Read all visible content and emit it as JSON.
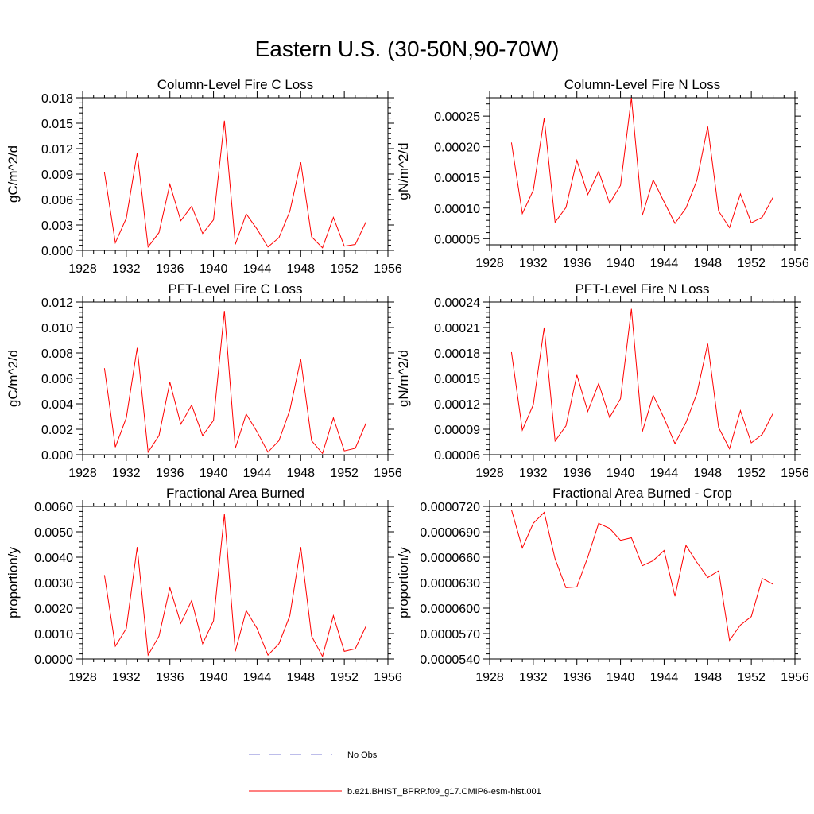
{
  "figure": {
    "title": "Eastern U.S. (30-50N,90-70W)"
  },
  "legend": {
    "entries": [
      {
        "label": "No Obs",
        "color": "#7b7bd6",
        "style": "dashed"
      },
      {
        "label": "b.e21.BHIST_BPRP.f09_g17.CMIP6-esm-hist.001",
        "color": "#ff0000",
        "style": "solid"
      }
    ]
  },
  "chart_data": [
    {
      "type": "line",
      "title": "Column-Level Fire C Loss",
      "ylabel": "gC/m^2/d",
      "xlim": [
        1928,
        1956
      ],
      "ylim": [
        0,
        0.018
      ],
      "xticks": [
        1928,
        1932,
        1936,
        1940,
        1944,
        1948,
        1952,
        1956
      ],
      "xtick_labels": [
        "1928",
        "1932",
        "1936",
        "1940",
        "1944",
        "1948",
        "1952",
        "1956"
      ],
      "yticks": [
        0,
        0.003,
        0.006,
        0.009,
        0.012,
        0.015,
        0.018
      ],
      "ytick_labels": [
        "0.000",
        "0.003",
        "0.006",
        "0.009",
        "0.012",
        "0.015",
        "0.018"
      ],
      "x": [
        1930,
        1931,
        1932,
        1933,
        1934,
        1935,
        1936,
        1937,
        1938,
        1939,
        1940,
        1941,
        1942,
        1943,
        1944,
        1945,
        1946,
        1947,
        1948,
        1949,
        1950,
        1951,
        1952,
        1953,
        1954
      ],
      "series": [
        {
          "color": "#ff0000",
          "values": [
            0.0092,
            0.0009,
            0.0038,
            0.0115,
            0.0004,
            0.0021,
            0.0078,
            0.0035,
            0.0052,
            0.002,
            0.0036,
            0.0153,
            0.0007,
            0.0043,
            0.0025,
            0.0004,
            0.0015,
            0.0046,
            0.0104,
            0.0016,
            0.0003,
            0.0039,
            0.0005,
            0.0007,
            0.0034
          ]
        }
      ]
    },
    {
      "type": "line",
      "title": "Column-Level Fire N Loss",
      "ylabel": "gN/m^2/d",
      "xlim": [
        1928,
        1956
      ],
      "ylim": [
        4e-05,
        0.00028
      ],
      "xticks": [
        1928,
        1932,
        1936,
        1940,
        1944,
        1948,
        1952,
        1956
      ],
      "xtick_labels": [
        "1928",
        "1932",
        "1936",
        "1940",
        "1944",
        "1948",
        "1952",
        "1956"
      ],
      "yticks": [
        5e-05,
        0.0001,
        0.00015,
        0.0002,
        0.00025
      ],
      "ytick_labels": [
        "0.00005",
        "0.00010",
        "0.00015",
        "0.00020",
        "0.00025"
      ],
      "x": [
        1930,
        1931,
        1932,
        1933,
        1934,
        1935,
        1936,
        1937,
        1938,
        1939,
        1940,
        1941,
        1942,
        1943,
        1944,
        1945,
        1946,
        1947,
        1948,
        1949,
        1950,
        1951,
        1952,
        1953,
        1954
      ],
      "series": [
        {
          "color": "#ff0000",
          "values": [
            0.000207,
            9.1e-05,
            0.000129,
            0.000247,
            7.7e-05,
            0.000101,
            0.000178,
            0.000122,
            0.00016,
            0.000108,
            0.000137,
            0.00028,
            8.8e-05,
            0.000146,
            0.00011,
            7.5e-05,
            0.0001,
            0.000145,
            0.000233,
            9.5e-05,
            6.8e-05,
            0.000123,
            7.6e-05,
            8.5e-05,
            0.000118
          ]
        }
      ]
    },
    {
      "type": "line",
      "title": "PFT-Level Fire C Loss",
      "ylabel": "gC/m^2/d",
      "xlim": [
        1928,
        1956
      ],
      "ylim": [
        0,
        0.012
      ],
      "xticks": [
        1928,
        1932,
        1936,
        1940,
        1944,
        1948,
        1952,
        1956
      ],
      "xtick_labels": [
        "1928",
        "1932",
        "1936",
        "1940",
        "1944",
        "1948",
        "1952",
        "1956"
      ],
      "yticks": [
        0,
        0.002,
        0.004,
        0.006,
        0.008,
        0.01,
        0.012
      ],
      "ytick_labels": [
        "0.000",
        "0.002",
        "0.004",
        "0.006",
        "0.008",
        "0.010",
        "0.012"
      ],
      "x": [
        1930,
        1931,
        1932,
        1933,
        1934,
        1935,
        1936,
        1937,
        1938,
        1939,
        1940,
        1941,
        1942,
        1943,
        1944,
        1945,
        1946,
        1947,
        1948,
        1949,
        1950,
        1951,
        1952,
        1953,
        1954
      ],
      "series": [
        {
          "color": "#ff0000",
          "values": [
            0.0068,
            0.0006,
            0.0029,
            0.0084,
            0.0002,
            0.0015,
            0.0057,
            0.0024,
            0.0039,
            0.0015,
            0.0027,
            0.0113,
            0.0005,
            0.0032,
            0.0018,
            0.0002,
            0.0011,
            0.0035,
            0.0075,
            0.0011,
            0.0001,
            0.0029,
            0.0003,
            0.0005,
            0.0025
          ]
        }
      ]
    },
    {
      "type": "line",
      "title": "PFT-Level Fire N Loss",
      "ylabel": "gN/m^2/d",
      "xlim": [
        1928,
        1956
      ],
      "ylim": [
        6e-05,
        0.00024
      ],
      "xticks": [
        1928,
        1932,
        1936,
        1940,
        1944,
        1948,
        1952,
        1956
      ],
      "xtick_labels": [
        "1928",
        "1932",
        "1936",
        "1940",
        "1944",
        "1948",
        "1952",
        "1956"
      ],
      "yticks": [
        6e-05,
        9e-05,
        0.00012,
        0.00015,
        0.00018,
        0.00021,
        0.00024
      ],
      "ytick_labels": [
        "0.00006",
        "0.00009",
        "0.00012",
        "0.00015",
        "0.00018",
        "0.00021",
        "0.00024"
      ],
      "x": [
        1930,
        1931,
        1932,
        1933,
        1934,
        1935,
        1936,
        1937,
        1938,
        1939,
        1940,
        1941,
        1942,
        1943,
        1944,
        1945,
        1946,
        1947,
        1948,
        1949,
        1950,
        1951,
        1952,
        1953,
        1954
      ],
      "series": [
        {
          "color": "#ff0000",
          "values": [
            0.000181,
            8.9e-05,
            0.000119,
            0.00021,
            7.6e-05,
            9.4e-05,
            0.000154,
            0.000111,
            0.000144,
            0.000104,
            0.000126,
            0.000232,
            8.7e-05,
            0.00013,
            0.000103,
            7.3e-05,
            9.8e-05,
            0.000132,
            0.000191,
            9.2e-05,
            6.7e-05,
            0.000112,
            7.4e-05,
            8.4e-05,
            0.000109
          ]
        }
      ]
    },
    {
      "type": "line",
      "title": "Fractional Area Burned",
      "ylabel": "proportion/y",
      "xlim": [
        1928,
        1956
      ],
      "ylim": [
        0,
        0.006
      ],
      "xticks": [
        1928,
        1932,
        1936,
        1940,
        1944,
        1948,
        1952,
        1956
      ],
      "xtick_labels": [
        "1928",
        "1932",
        "1936",
        "1940",
        "1944",
        "1948",
        "1952",
        "1956"
      ],
      "yticks": [
        0,
        0.001,
        0.002,
        0.003,
        0.004,
        0.005,
        0.006
      ],
      "ytick_labels": [
        "0.0000",
        "0.0010",
        "0.0020",
        "0.0030",
        "0.0040",
        "0.0050",
        "0.0060"
      ],
      "x": [
        1930,
        1931,
        1932,
        1933,
        1934,
        1935,
        1936,
        1937,
        1938,
        1939,
        1940,
        1941,
        1942,
        1943,
        1944,
        1945,
        1946,
        1947,
        1948,
        1949,
        1950,
        1951,
        1952,
        1953,
        1954
      ],
      "series": [
        {
          "color": "#ff0000",
          "values": [
            0.0033,
            0.0005,
            0.0012,
            0.0044,
            0.00015,
            0.0009,
            0.0028,
            0.0014,
            0.0023,
            0.0006,
            0.0015,
            0.0057,
            0.0003,
            0.0019,
            0.0012,
            0.00015,
            0.0006,
            0.0017,
            0.0044,
            0.0009,
            0.0001,
            0.0017,
            0.0003,
            0.0004,
            0.0013
          ]
        }
      ]
    },
    {
      "type": "line",
      "title": "Fractional Area Burned - Crop",
      "ylabel": "proportion/y",
      "xlim": [
        1928,
        1956
      ],
      "ylim": [
        5.4e-05,
        7.2e-05
      ],
      "xticks": [
        1928,
        1932,
        1936,
        1940,
        1944,
        1948,
        1952,
        1956
      ],
      "xtick_labels": [
        "1928",
        "1932",
        "1936",
        "1940",
        "1944",
        "1948",
        "1952",
        "1956"
      ],
      "yticks": [
        5.4e-05,
        5.7e-05,
        6e-05,
        6.3e-05,
        6.6e-05,
        6.9e-05,
        7.2e-05
      ],
      "ytick_labels": [
        "0.0000540",
        "0.0000570",
        "0.0000600",
        "0.0000630",
        "0.0000660",
        "0.0000690",
        "0.0000720"
      ],
      "x": [
        1930,
        1931,
        1932,
        1933,
        1934,
        1935,
        1936,
        1937,
        1938,
        1939,
        1940,
        1941,
        1942,
        1943,
        1944,
        1945,
        1946,
        1947,
        1948,
        1949,
        1950,
        1951,
        1952,
        1953,
        1954
      ],
      "series": [
        {
          "color": "#ff0000",
          "values": [
            7.16e-05,
            6.71e-05,
            7e-05,
            7.13e-05,
            6.58e-05,
            6.24e-05,
            6.25e-05,
            6.6e-05,
            7e-05,
            6.94e-05,
            6.8e-05,
            6.83e-05,
            6.5e-05,
            6.56e-05,
            6.68e-05,
            6.14e-05,
            6.74e-05,
            6.54e-05,
            6.36e-05,
            6.44e-05,
            5.62e-05,
            5.8e-05,
            5.9e-05,
            6.35e-05,
            6.28e-05
          ]
        }
      ]
    }
  ]
}
